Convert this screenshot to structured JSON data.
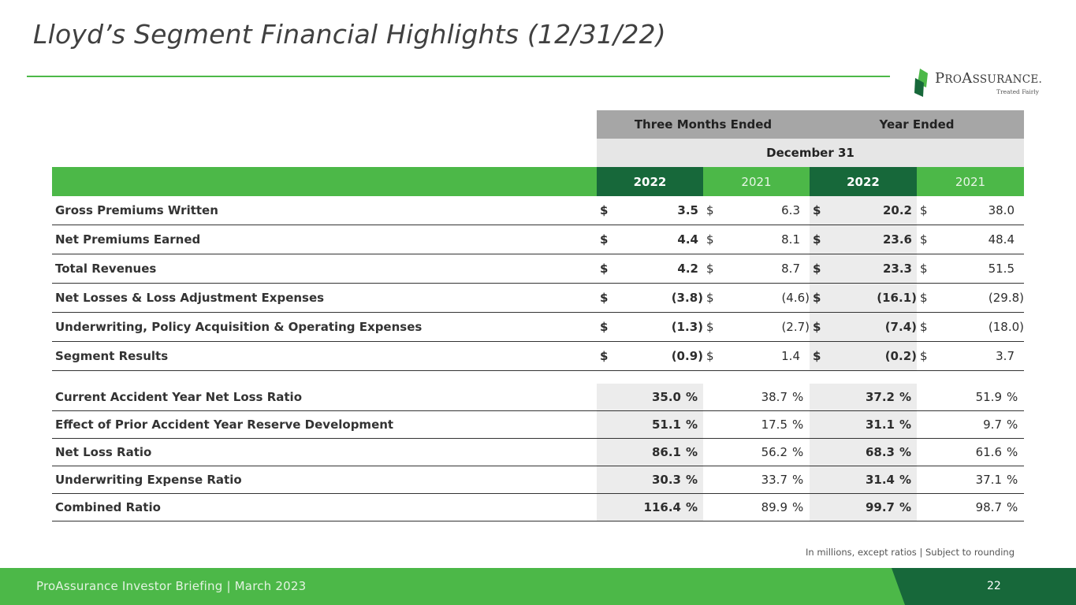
{
  "slide": {
    "title": "Lloyd’s Segment Financial Highlights (12/31/22)",
    "footnote": "In millions, except ratios  |  Subject to rounding",
    "footer": "ProAssurance Investor Briefing | March 2023",
    "page_number": "22",
    "accent_color": "#4cb848",
    "dark_accent_color": "#17683a"
  },
  "logo": {
    "word_big_1": "P",
    "word_small_1": "RO",
    "word_big_2": "A",
    "word_small_2": "SSURANCE",
    "mark": ".",
    "tagline": "Treated Fairly"
  },
  "table": {
    "header_groups": [
      "Three Months Ended",
      "Year Ended"
    ],
    "period": "December 31",
    "years": [
      "2022",
      "2021",
      "2022",
      "2021"
    ],
    "currency_symbol": "$",
    "percent_symbol": "%",
    "dollar_rows": [
      {
        "label": "Gross Premiums Written",
        "values": [
          "3.5",
          "6.3",
          "20.2",
          "38.0"
        ]
      },
      {
        "label": "Net Premiums Earned",
        "values": [
          "4.4",
          "8.1",
          "23.6",
          "48.4"
        ]
      },
      {
        "label": "Total Revenues",
        "values": [
          "4.2",
          "8.7",
          "23.3",
          "51.5"
        ]
      },
      {
        "label": "Net Losses & Loss Adjustment Expenses",
        "values": [
          "(3.8)",
          "(4.6)",
          "(16.1)",
          "(29.8)"
        ]
      },
      {
        "label": "Underwriting, Policy Acquisition & Operating Expenses",
        "values": [
          "(1.3)",
          "(2.7)",
          "(7.4)",
          "(18.0)"
        ]
      },
      {
        "label": "Segment Results",
        "values": [
          "(0.9)",
          "1.4",
          "(0.2)",
          "3.7"
        ]
      }
    ],
    "ratio_rows": [
      {
        "label": "Current Accident Year Net Loss Ratio",
        "values": [
          "35.0",
          "38.7",
          "37.2",
          "51.9"
        ]
      },
      {
        "label": "Effect of Prior Accident Year Reserve Development",
        "values": [
          "51.1",
          "17.5",
          "31.1",
          "9.7"
        ]
      },
      {
        "label": "Net Loss Ratio",
        "values": [
          "86.1",
          "56.2",
          "68.3",
          "61.6"
        ]
      },
      {
        "label": "Underwriting Expense Ratio",
        "values": [
          "30.3",
          "33.7",
          "31.4",
          "37.1"
        ]
      },
      {
        "label": "Combined Ratio",
        "values": [
          "116.4",
          "89.9",
          "99.7",
          "98.7"
        ]
      }
    ]
  }
}
